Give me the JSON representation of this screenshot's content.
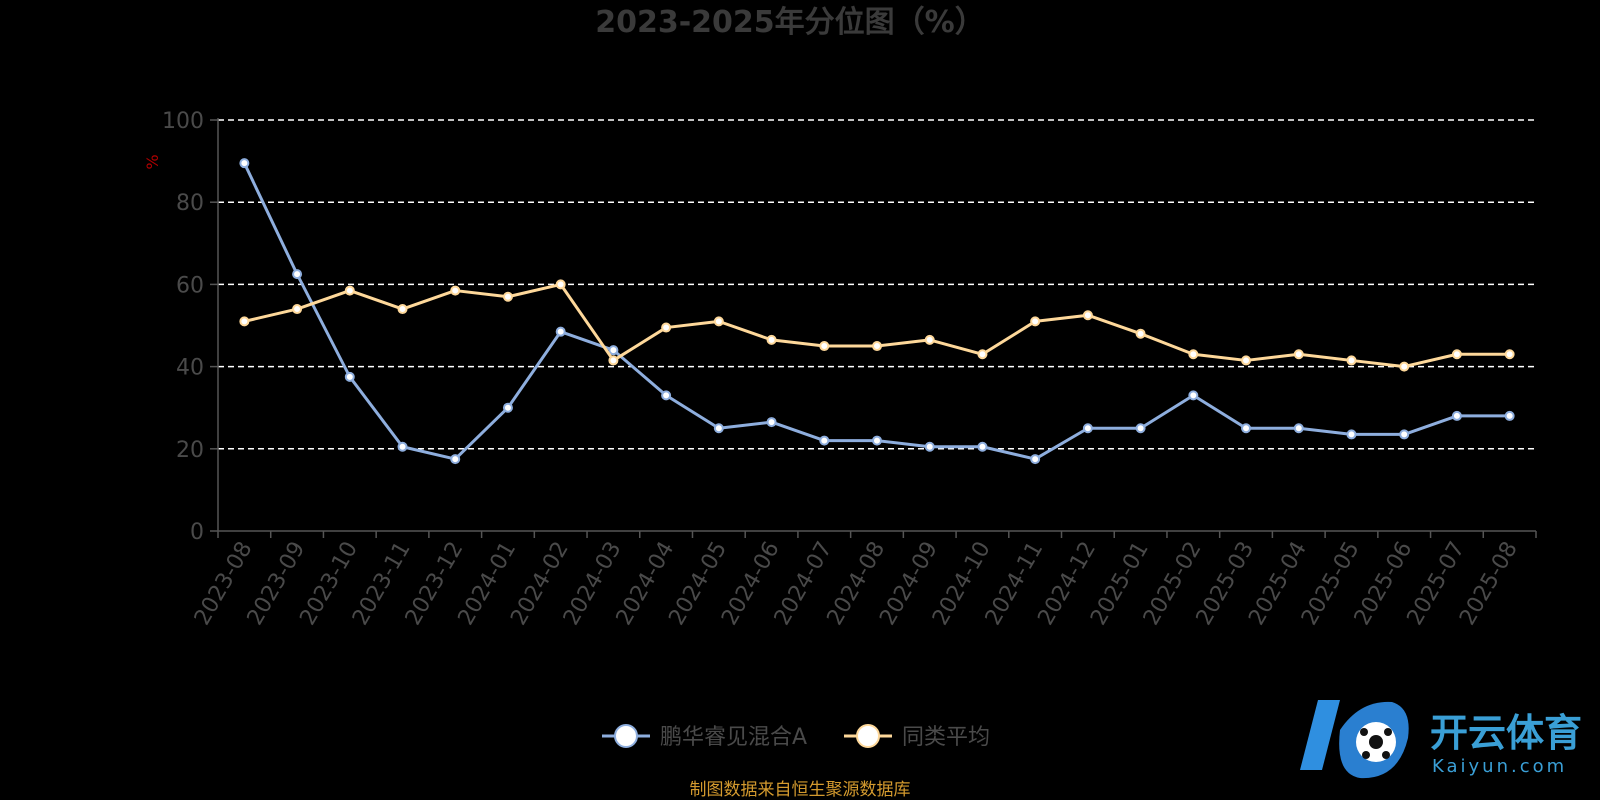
{
  "chart_data": {
    "type": "line",
    "title": "2023-2025年分位图（%）",
    "ylabel": "%",
    "ylim": [
      0,
      100
    ],
    "yticks": [
      "0",
      "20",
      "40",
      "60",
      "80",
      "100"
    ],
    "grid": true,
    "categories": [
      "2023-08",
      "2023-09",
      "2023-10",
      "2023-11",
      "2023-12",
      "2024-01",
      "2024-02",
      "2024-03",
      "2024-04",
      "2024-05",
      "2024-06",
      "2024-07",
      "2024-08",
      "2024-09",
      "2024-10",
      "2024-11",
      "2024-12",
      "2025-01",
      "2025-02",
      "2025-03",
      "2025-04",
      "2025-05",
      "2025-06",
      "2025-07",
      "2025-08"
    ],
    "series": [
      {
        "name": "鹏华睿见混合A",
        "color": "#8eaede",
        "values": [
          89.5,
          62.5,
          37.5,
          20.5,
          17.5,
          30,
          48.5,
          44,
          33,
          25,
          26.5,
          22,
          22,
          20.5,
          20.5,
          17.5,
          25,
          25,
          33,
          25,
          25,
          23.5,
          23.5,
          28,
          28
        ]
      },
      {
        "name": "同类平均",
        "color": "#fed89a",
        "values": [
          51,
          54,
          58.5,
          54,
          58.5,
          57,
          60,
          41.5,
          49.5,
          51,
          46.5,
          45,
          45,
          46.5,
          43,
          51,
          52.5,
          48,
          43,
          41.5,
          43,
          41.5,
          40,
          43,
          43
        ]
      }
    ],
    "legend_position": "bottom-center"
  },
  "source_note": "制图数据来自恒生聚源数据库",
  "watermark": {
    "cn": "开云体育",
    "en": "Kaiyun.com",
    "color": "#3a9fd6"
  }
}
